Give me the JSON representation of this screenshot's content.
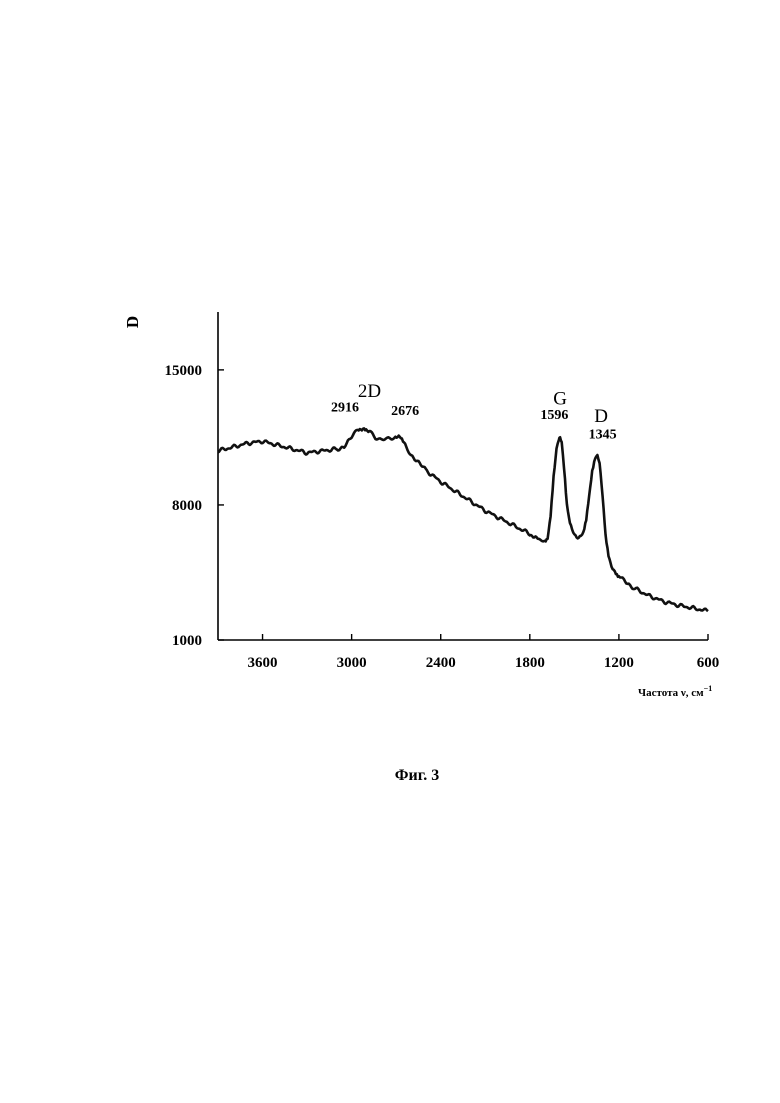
{
  "chart_data": {
    "type": "line",
    "title": "",
    "ylabel": "D",
    "xlabel": "Частота ν, см",
    "xlabel_sup": "−1",
    "xlim": [
      3900,
      600
    ],
    "ylim": [
      1000,
      18000
    ],
    "x_ticks": [
      3600,
      3000,
      2400,
      1800,
      1200,
      600
    ],
    "y_ticks": [
      1000,
      8000,
      15000
    ],
    "x_reversed": true,
    "grid": false,
    "legend": "none",
    "series": [
      {
        "x": [
          3900,
          3800,
          3700,
          3600,
          3500,
          3400,
          3300,
          3200,
          3100,
          3050,
          3000,
          2960,
          2916,
          2880,
          2840,
          2800,
          2760,
          2720,
          2676,
          2640,
          2600,
          2550,
          2500,
          2400,
          2300,
          2200,
          2100,
          2000,
          1900,
          1800,
          1740,
          1700,
          1680,
          1660,
          1640,
          1620,
          1605,
          1596,
          1585,
          1570,
          1550,
          1530,
          1500,
          1470,
          1440,
          1420,
          1400,
          1380,
          1360,
          1345,
          1330,
          1310,
          1290,
          1270,
          1250,
          1220,
          1200,
          1150,
          1100,
          1000,
          900,
          800,
          700,
          600
        ],
        "y": [
          10800,
          11000,
          11200,
          11300,
          11100,
          10900,
          10700,
          10800,
          10900,
          11000,
          11500,
          11900,
          12000,
          11800,
          11500,
          11400,
          11400,
          11500,
          11500,
          11100,
          10600,
          10200,
          9800,
          9200,
          8700,
          8200,
          7700,
          7300,
          6900,
          6500,
          6200,
          6100,
          6300,
          7500,
          9500,
          10900,
          11400,
          11500,
          11200,
          10000,
          8000,
          7000,
          6500,
          6300,
          6500,
          7200,
          8500,
          9800,
          10500,
          10600,
          10200,
          8500,
          6500,
          5400,
          4800,
          4500,
          4300,
          4000,
          3700,
          3300,
          3000,
          2800,
          2650,
          2500
        ]
      }
    ],
    "annotations": [
      {
        "text": "2D",
        "x": 2880,
        "y": 13600,
        "kind": "band"
      },
      {
        "text": "2916",
        "x": 3045,
        "y": 12850,
        "kind": "peak"
      },
      {
        "text": "2676",
        "x": 2640,
        "y": 12650,
        "kind": "peak"
      },
      {
        "text": "G",
        "x": 1596,
        "y": 13200,
        "kind": "band"
      },
      {
        "text": "1596",
        "x": 1635,
        "y": 12450,
        "kind": "peak"
      },
      {
        "text": "D",
        "x": 1320,
        "y": 12300,
        "kind": "band"
      },
      {
        "text": "1345",
        "x": 1310,
        "y": 11450,
        "kind": "peak"
      }
    ]
  },
  "caption": "Фиг. 3"
}
